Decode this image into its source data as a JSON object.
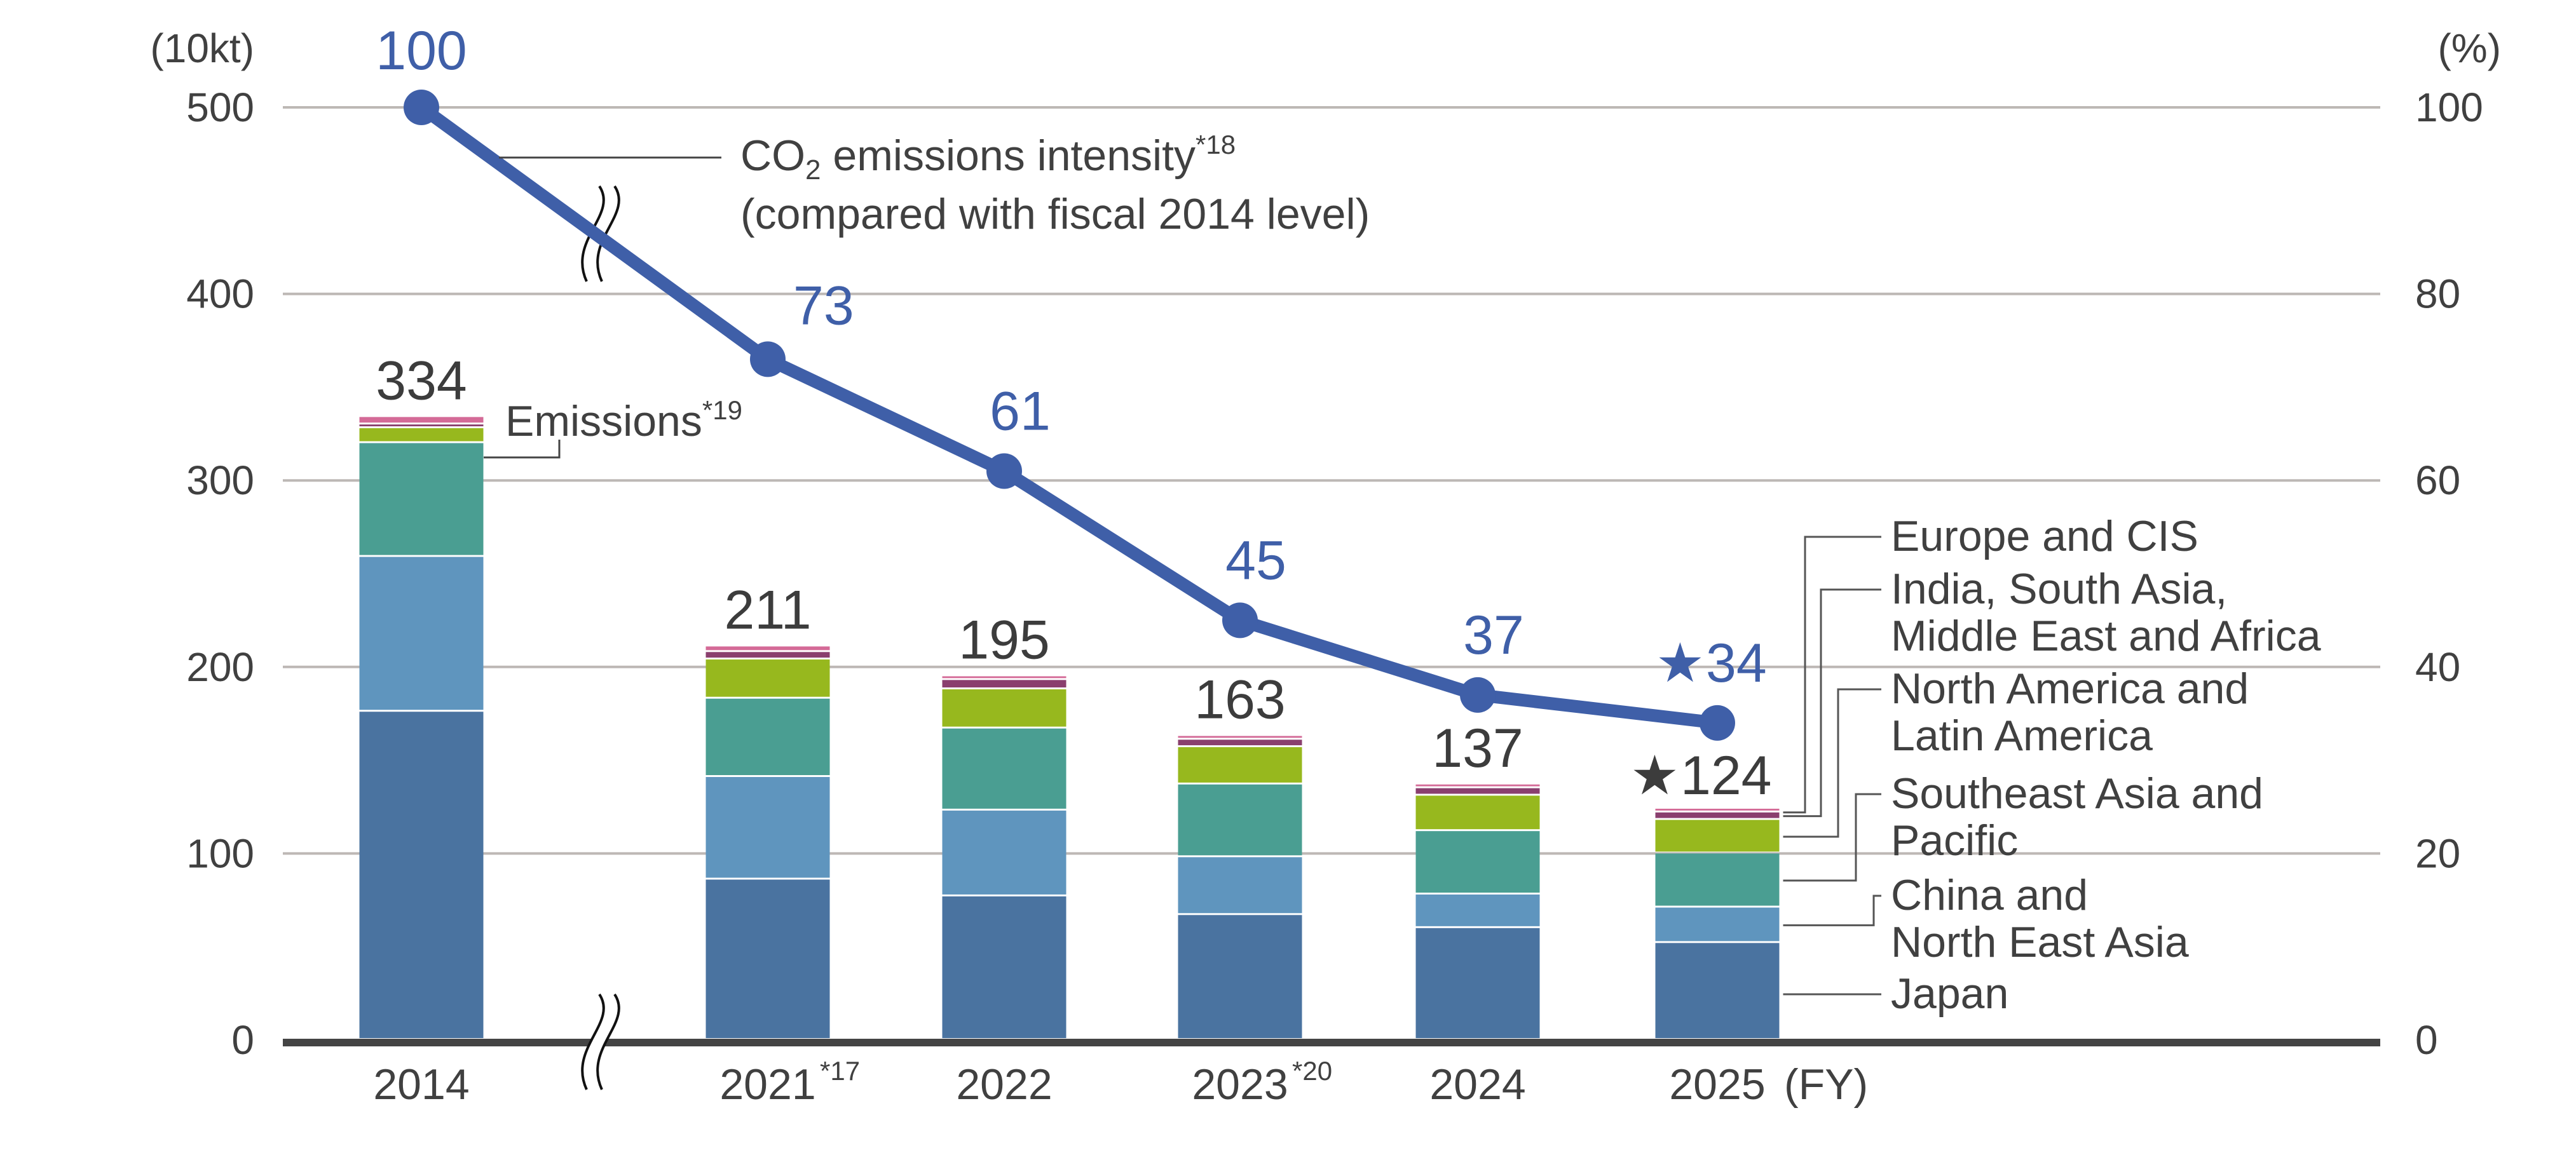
{
  "chart_data": {
    "type": "bar",
    "title": "",
    "xlabel": "(FY)",
    "ylabel": "(10kt)",
    "ylabel_right": "(%)",
    "ylim": [
      0,
      500
    ],
    "ylim_right": [
      0,
      100
    ],
    "yticks": [
      "0",
      "100",
      "200",
      "300",
      "400",
      "500"
    ],
    "yticks_right": [
      "0",
      "20",
      "40",
      "60",
      "80",
      "100"
    ],
    "grid": true,
    "axis_break": "between 2014 and 2021",
    "categories": [
      {
        "year": "2014",
        "note": ""
      },
      {
        "year": "2021",
        "note": "*17"
      },
      {
        "year": "2022",
        "note": ""
      },
      {
        "year": "2023",
        "note": "*20"
      },
      {
        "year": "2024",
        "note": ""
      },
      {
        "year": "2025",
        "note": ""
      }
    ],
    "series": [
      {
        "name": "Japan",
        "color": "#4a73a0",
        "values": [
          176,
          86,
          77,
          67,
          60,
          52
        ]
      },
      {
        "name": "China and North East Asia",
        "color": "#5f95be",
        "values": [
          83,
          55,
          46,
          31,
          18,
          19
        ]
      },
      {
        "name": "Southeast Asia and Pacific",
        "color": "#4a9e92",
        "values": [
          61,
          42,
          44,
          39,
          34,
          29
        ]
      },
      {
        "name": "North America and Latin America",
        "color": "#97b81e",
        "values": [
          8,
          21,
          21,
          20,
          19,
          18
        ]
      },
      {
        "name": "India, South Asia, Middle East and Africa",
        "color": "#8a3f6e",
        "values": [
          2,
          4,
          5,
          4,
          4,
          4
        ]
      },
      {
        "name": "Europe and CIS",
        "color": "#d46a97",
        "values": [
          4,
          3,
          2,
          2,
          2,
          2
        ]
      }
    ],
    "totals": [
      "334",
      "211",
      "195",
      "163",
      "137",
      "124"
    ],
    "totals_star": [
      false,
      false,
      false,
      false,
      false,
      true
    ],
    "line": {
      "name": "CO2 emissions intensity (compared with fiscal 2014 level)",
      "color": "#3f5fa8",
      "axis": "right",
      "values": [
        100,
        73,
        61,
        45,
        37,
        34
      ],
      "labels": [
        "100",
        "73",
        "61",
        "45",
        "37",
        "34"
      ],
      "star": [
        false,
        false,
        false,
        false,
        false,
        true
      ]
    },
    "annotations": {
      "line_label_1a": "CO",
      "line_label_1sub": "2",
      "line_label_1b": " emissions  intensity",
      "line_label_1sup": "*18",
      "line_label_2": "(compared with fiscal 2014 level)",
      "bar_label": "Emissions",
      "bar_label_sup": "*19",
      "star_glyph": "★"
    },
    "legend": {
      "placement": "right",
      "items": [
        {
          "lines": [
            "Europe and CIS"
          ]
        },
        {
          "lines": [
            "India, South Asia,",
            "Middle East and Africa"
          ]
        },
        {
          "lines": [
            "North America and",
            "Latin America"
          ]
        },
        {
          "lines": [
            "Southeast Asia and",
            "Pacific"
          ]
        },
        {
          "lines": [
            "China and",
            "North East Asia"
          ]
        },
        {
          "lines": [
            "Japan"
          ]
        }
      ]
    }
  }
}
